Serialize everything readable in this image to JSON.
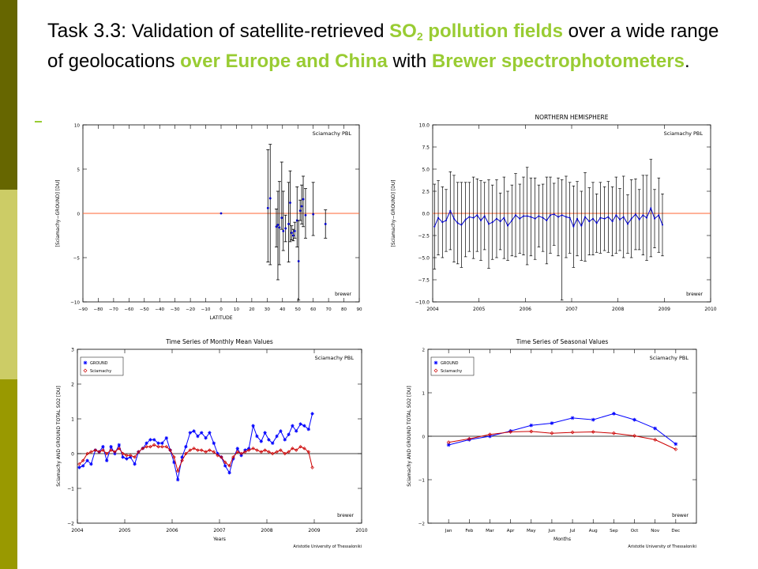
{
  "slide": {
    "title": {
      "task": "Task 3.3:",
      "part1": " Validation of satellite-retrieved ",
      "so": "SO",
      "sub": "2",
      "part2": " pollution fields",
      "part3": " over a wide range of geolocations ",
      "part4": "over Europe and China",
      "part5": " with ",
      "part6": "Brewer spectrophotometers",
      "part7": "."
    },
    "accent_color": "#99cc33",
    "side_bar_colors": [
      "#666600",
      "#cccc66",
      "#999900"
    ]
  },
  "chart_data": [
    {
      "type": "scatter",
      "title": "",
      "tag": "Sciamachy PBL",
      "footer": "brewer",
      "xlabel": "LATITUDE",
      "ylabel": "[Sciamachy−GROUND] [DU]",
      "xlim": [
        -90,
        90
      ],
      "ylim": [
        -10,
        10
      ],
      "xticks": [
        "−90",
        "−80",
        "−70",
        "−60",
        "−50",
        "−40",
        "−30",
        "−20",
        "−10",
        "0",
        "10",
        "20",
        "30",
        "40",
        "50",
        "60",
        "70",
        "80",
        "90"
      ],
      "yticks": [
        "−10",
        "−5",
        "0",
        "5",
        "10"
      ],
      "reference_line": 0,
      "points": [
        {
          "x": 0,
          "y": 0,
          "lo": 0,
          "hi": 0
        },
        {
          "x": 30.5,
          "y": 0.6,
          "lo": -5.5,
          "hi": 7.2
        },
        {
          "x": 32,
          "y": 1.7,
          "lo": -5.8,
          "hi": 7.8
        },
        {
          "x": 36,
          "y": -1.5,
          "lo": -3.8,
          "hi": 0.5
        },
        {
          "x": 37,
          "y": -1.3,
          "lo": -7.5,
          "hi": 2.5
        },
        {
          "x": 38,
          "y": -1.6,
          "lo": -5.8,
          "hi": 3.6
        },
        {
          "x": 39.5,
          "y": -0.5,
          "lo": -1.8,
          "hi": 5.8
        },
        {
          "x": 40.5,
          "y": -2.0,
          "lo": -4.2,
          "hi": 2.5
        },
        {
          "x": 42,
          "y": -1.7,
          "lo": -3.2,
          "hi": -0.2
        },
        {
          "x": 44,
          "y": -1.2,
          "lo": -5.5,
          "hi": 3.5
        },
        {
          "x": 45,
          "y": 1.2,
          "lo": -3.2,
          "hi": 4.8
        },
        {
          "x": 46,
          "y": -2.2,
          "lo": -3.0,
          "hi": -1.4
        },
        {
          "x": 47,
          "y": -2.5,
          "lo": -3.1,
          "hi": -1.8
        },
        {
          "x": 48,
          "y": -2.0,
          "lo": -2.8,
          "hi": -1.0
        },
        {
          "x": 49.5,
          "y": -0.8,
          "lo": -3.8,
          "hi": 3.0
        },
        {
          "x": 50.5,
          "y": -5.4,
          "lo": -9.8,
          "hi": -0.8
        },
        {
          "x": 51.5,
          "y": 0.3,
          "lo": -0.8,
          "hi": 1.5
        },
        {
          "x": 52.5,
          "y": 0.8,
          "lo": -1.2,
          "hi": 3.2
        },
        {
          "x": 53.5,
          "y": 1.6,
          "lo": -1.5,
          "hi": 4.2
        },
        {
          "x": 55,
          "y": -0.2,
          "lo": -2.8,
          "hi": 2.8
        },
        {
          "x": 60,
          "y": -0.1,
          "lo": -2.5,
          "hi": 3.5
        },
        {
          "x": 68,
          "y": -1.2,
          "lo": -2.8,
          "hi": 0.4
        }
      ]
    },
    {
      "type": "line",
      "title": "NORTHERN HEMISPHERE",
      "tag": "Sciamachy PBL",
      "footer": "brewer",
      "xlabel": "",
      "ylabel": "[Sciamachy−GROUND] [DU]",
      "xlim": [
        2004,
        2010
      ],
      "ylim": [
        -10,
        10
      ],
      "xticks": [
        "2004",
        "2005",
        "2006",
        "2007",
        "2008",
        "2009",
        "2010"
      ],
      "yticks": [
        "−10.0",
        "−7.5",
        "−5.0",
        "−2.5",
        "0.0",
        "2.5",
        "5.0",
        "7.5",
        "10.0"
      ],
      "reference_line": 0,
      "x": [
        2004.04,
        2004.12,
        2004.21,
        2004.29,
        2004.38,
        2004.46,
        2004.54,
        2004.62,
        2004.71,
        2004.79,
        2004.88,
        2004.96,
        2005.04,
        2005.12,
        2005.21,
        2005.29,
        2005.38,
        2005.46,
        2005.54,
        2005.62,
        2005.71,
        2005.79,
        2005.88,
        2005.96,
        2006.04,
        2006.12,
        2006.21,
        2006.29,
        2006.38,
        2006.46,
        2006.54,
        2006.62,
        2006.71,
        2006.79,
        2006.88,
        2006.96,
        2007.04,
        2007.12,
        2007.21,
        2007.29,
        2007.38,
        2007.46,
        2007.54,
        2007.62,
        2007.71,
        2007.79,
        2007.88,
        2007.96,
        2008.04,
        2008.12,
        2008.21,
        2008.29,
        2008.38,
        2008.46,
        2008.54,
        2008.62,
        2008.71,
        2008.79,
        2008.88,
        2008.96
      ],
      "y": [
        -1.5,
        -0.5,
        -1.0,
        -0.8,
        0.3,
        -0.6,
        -1.1,
        -1.3,
        -0.7,
        -0.4,
        -0.5,
        -0.2,
        -0.8,
        -0.3,
        -1.2,
        -1.0,
        -0.6,
        -0.9,
        -0.5,
        -1.4,
        -0.8,
        -0.2,
        -0.6,
        -0.3,
        -0.3,
        -0.4,
        -0.6,
        -0.3,
        -0.5,
        -0.8,
        -0.2,
        -0.1,
        -0.4,
        -0.2,
        -0.4,
        -0.5,
        -1.5,
        -0.6,
        -1.4,
        -0.4,
        -0.9,
        -0.6,
        -1.1,
        -0.5,
        -0.6,
        -0.4,
        -0.9,
        -0.2,
        -0.7,
        -0.4,
        -1.2,
        -0.6,
        -0.1,
        -0.7,
        -0.2,
        -0.5,
        0.6,
        -0.6,
        -0.2,
        -1.3
      ],
      "err": [
        4.8,
        4.2,
        4.0,
        3.5,
        4.4,
        4.9,
        4.6,
        4.8,
        4.2,
        3.9,
        4.6,
        4.1,
        4.5,
        3.8,
        5.0,
        4.2,
        4.4,
        3.2,
        4.6,
        3.9,
        4.0,
        4.7,
        3.9,
        4.4,
        5.5,
        4.4,
        4.6,
        3.5,
        3.8,
        4.9,
        4.3,
        3.5,
        4.4,
        4.0,
        4.6,
        4.0,
        4.6,
        4.2,
        3.9,
        5.0,
        3.8,
        4.1,
        3.3,
        4.0,
        3.6,
        4.0,
        3.9,
        4.3,
        3.5,
        4.6,
        3.3,
        4.4,
        4.0,
        3.4,
        4.5,
        4.8,
        5.5,
        3.3,
        4.2,
        3.5
      ],
      "extra_low_error": {
        "x": 2006.79,
        "lo": -9.8
      }
    },
    {
      "type": "line",
      "title": "Time Series of Monthly Mean Values",
      "tag": "Sciamachy PBL",
      "footer": "brewer",
      "credit": "Aristotle University of Thessaloniki",
      "xlabel": "Years",
      "ylabel": "Sciamachy AND GROUND TOTAL SO2 [DU]",
      "xlim": [
        2004,
        2010
      ],
      "ylim": [
        -2,
        3
      ],
      "xticks": [
        "2004",
        "2005",
        "2006",
        "2007",
        "2008",
        "2009",
        "2010"
      ],
      "yticks": [
        "−2",
        "−1",
        "0",
        "1",
        "2",
        "3"
      ],
      "reference_line": 0,
      "x": [
        2004.04,
        2004.12,
        2004.21,
        2004.29,
        2004.38,
        2004.46,
        2004.54,
        2004.62,
        2004.71,
        2004.79,
        2004.88,
        2004.96,
        2005.04,
        2005.12,
        2005.21,
        2005.29,
        2005.38,
        2005.46,
        2005.54,
        2005.62,
        2005.71,
        2005.79,
        2005.88,
        2005.96,
        2006.04,
        2006.12,
        2006.21,
        2006.29,
        2006.38,
        2006.46,
        2006.54,
        2006.62,
        2006.71,
        2006.79,
        2006.88,
        2006.96,
        2007.04,
        2007.12,
        2007.21,
        2007.29,
        2007.38,
        2007.46,
        2007.54,
        2007.62,
        2007.71,
        2007.79,
        2007.88,
        2007.96,
        2008.04,
        2008.12,
        2008.21,
        2008.29,
        2008.38,
        2008.46,
        2008.54,
        2008.62,
        2008.71,
        2008.79,
        2008.88,
        2008.96
      ],
      "series": [
        {
          "name": "GROUND",
          "color": "#0000ff",
          "marker": "star",
          "values": [
            -0.4,
            -0.35,
            -0.2,
            -0.3,
            0.1,
            0.05,
            0.2,
            -0.2,
            0.2,
            0.0,
            0.25,
            -0.1,
            -0.15,
            -0.1,
            -0.3,
            0.05,
            0.15,
            0.3,
            0.4,
            0.4,
            0.3,
            0.3,
            0.45,
            0.1,
            -0.25,
            -0.75,
            -0.1,
            0.2,
            0.6,
            0.65,
            0.5,
            0.6,
            0.45,
            0.6,
            0.3,
            0.0,
            -0.1,
            -0.35,
            -0.55,
            -0.15,
            0.15,
            -0.05,
            0.1,
            0.15,
            0.8,
            0.5,
            0.35,
            0.6,
            0.4,
            0.3,
            0.5,
            0.65,
            0.4,
            0.55,
            0.8,
            0.65,
            0.85,
            0.8,
            0.7,
            1.15
          ]
        },
        {
          "name": "Sciamachy",
          "color": "#cc0000",
          "marker": "diamond",
          "values": [
            -0.3,
            -0.2,
            0.0,
            0.05,
            0.1,
            0.05,
            0.1,
            0.0,
            0.1,
            0.05,
            0.15,
            0.0,
            -0.05,
            -0.05,
            -0.1,
            0.05,
            0.15,
            0.2,
            0.2,
            0.25,
            0.2,
            0.2,
            0.2,
            0.1,
            -0.1,
            -0.5,
            -0.2,
            0.0,
            0.1,
            0.15,
            0.1,
            0.1,
            0.05,
            0.1,
            0.05,
            -0.05,
            -0.1,
            -0.25,
            -0.35,
            -0.1,
            0.05,
            0.0,
            0.05,
            0.1,
            0.15,
            0.1,
            0.05,
            0.1,
            0.05,
            0.0,
            0.05,
            0.1,
            0.0,
            0.05,
            0.15,
            0.1,
            0.2,
            0.15,
            0.05,
            -0.4
          ]
        }
      ]
    },
    {
      "type": "line",
      "title": "Time Series of Seasonal Values",
      "tag": "Sciamachy PBL",
      "footer": "brewer",
      "credit": "Aristotle University of Thessaloniki",
      "xlabel": "Months",
      "ylabel": "Sciamachy AND GROUND TOTAL SO2 [DU]",
      "ylim": [
        -2,
        2
      ],
      "categories": [
        "Jan",
        "Feb",
        "Mar",
        "Apr",
        "May",
        "Jun",
        "Jul",
        "Aug",
        "Sep",
        "Oct",
        "Nov",
        "Dec"
      ],
      "yticks": [
        "−2",
        "−1",
        "0",
        "1",
        "2"
      ],
      "reference_line": 0,
      "series": [
        {
          "name": "GROUND",
          "color": "#0000ff",
          "marker": "star",
          "values": [
            -0.2,
            -0.08,
            0.0,
            0.12,
            0.25,
            0.3,
            0.42,
            0.38,
            0.52,
            0.38,
            0.18,
            -0.18
          ]
        },
        {
          "name": "Sciamachy",
          "color": "#cc0000",
          "marker": "diamond",
          "values": [
            -0.14,
            -0.06,
            0.04,
            0.1,
            0.11,
            0.07,
            0.09,
            0.1,
            0.07,
            0.01,
            -0.08,
            -0.3
          ]
        }
      ]
    }
  ]
}
